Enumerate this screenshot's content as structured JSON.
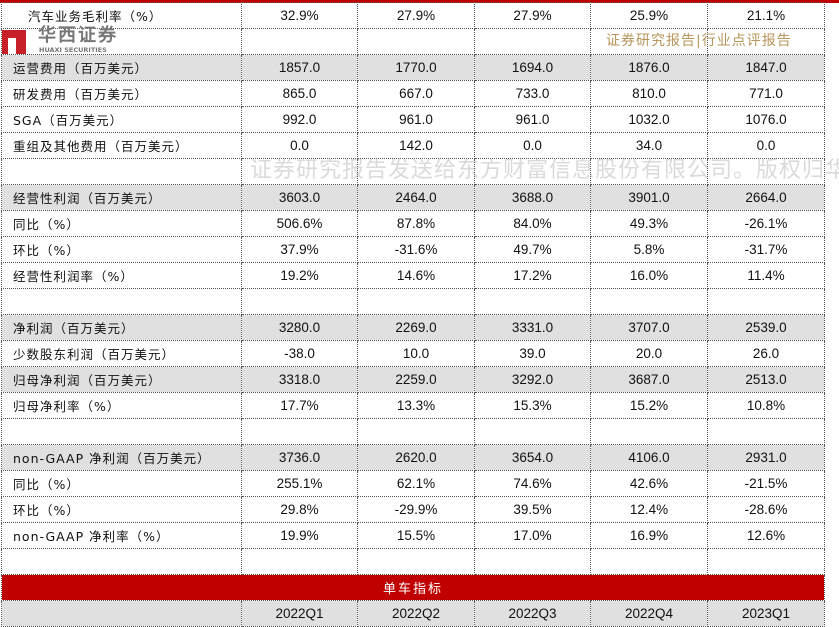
{
  "watermark": "证券研究报告发送给东方财富信息股份有限公司。版权归华西证券所有，请勿转发",
  "logo": {
    "cn": "华西证券",
    "en": "HUAXI SECURITIES"
  },
  "report_tag": "证券研究报告|行业点评报告",
  "colors": {
    "accent": "#c00000",
    "shade": "#e0e0e0",
    "tag": "#b8955a"
  },
  "rows": [
    {
      "label": "  汽车业务毛利率（%）",
      "values": [
        "32.9%",
        "27.9%",
        "27.9%",
        "25.9%",
        "21.1%"
      ],
      "shade": false
    },
    {
      "label": "",
      "values": [
        "",
        "",
        "",
        "",
        ""
      ],
      "shade": false
    },
    {
      "label": "运营费用（百万美元）",
      "values": [
        "1857.0",
        "1770.0",
        "1694.0",
        "1876.0",
        "1847.0"
      ],
      "shade": true
    },
    {
      "label": "研发费用（百万美元）",
      "values": [
        "865.0",
        "667.0",
        "733.0",
        "810.0",
        "771.0"
      ],
      "shade": false
    },
    {
      "label": "SGA（百万美元）",
      "values": [
        "992.0",
        "961.0",
        "961.0",
        "1032.0",
        "1076.0"
      ],
      "shade": false
    },
    {
      "label": "重组及其他费用（百万美元）",
      "values": [
        "0.0",
        "142.0",
        "0.0",
        "34.0",
        "0.0"
      ],
      "shade": false
    },
    {
      "label": "",
      "values": [
        "",
        "",
        "",
        "",
        ""
      ],
      "shade": false
    },
    {
      "label": "经营性利润（百万美元）",
      "values": [
        "3603.0",
        "2464.0",
        "3688.0",
        "3901.0",
        "2664.0"
      ],
      "shade": true
    },
    {
      "label": "同比（%）",
      "values": [
        "506.6%",
        "87.8%",
        "84.0%",
        "49.3%",
        "-26.1%"
      ],
      "shade": false
    },
    {
      "label": "环比（%）",
      "values": [
        "37.9%",
        "-31.6%",
        "49.7%",
        "5.8%",
        "-31.7%"
      ],
      "shade": false
    },
    {
      "label": "经营性利润率（%）",
      "values": [
        "19.2%",
        "14.6%",
        "17.2%",
        "16.0%",
        "11.4%"
      ],
      "shade": false
    },
    {
      "label": "",
      "values": [
        "",
        "",
        "",
        "",
        ""
      ],
      "shade": false
    },
    {
      "label": "净利润（百万美元）",
      "values": [
        "3280.0",
        "2269.0",
        "3331.0",
        "3707.0",
        "2539.0"
      ],
      "shade": true
    },
    {
      "label": "少数股东利润（百万美元）",
      "values": [
        "-38.0",
        "10.0",
        "39.0",
        "20.0",
        "26.0"
      ],
      "shade": false
    },
    {
      "label": "归母净利润（百万美元）",
      "values": [
        "3318.0",
        "2259.0",
        "3292.0",
        "3687.0",
        "2513.0"
      ],
      "shade": true
    },
    {
      "label": "归母净利率（%）",
      "values": [
        "17.7%",
        "13.3%",
        "15.3%",
        "15.2%",
        "10.8%"
      ],
      "shade": false
    },
    {
      "label": "",
      "values": [
        "",
        "",
        "",
        "",
        ""
      ],
      "shade": false
    },
    {
      "label": "non-GAAP 净利润（百万美元）",
      "values": [
        "3736.0",
        "2620.0",
        "3654.0",
        "4106.0",
        "2931.0"
      ],
      "shade": true
    },
    {
      "label": "同比（%）",
      "values": [
        "255.1%",
        "62.1%",
        "74.6%",
        "42.6%",
        "-21.5%"
      ],
      "shade": false
    },
    {
      "label": "环比（%）",
      "values": [
        "29.8%",
        "-29.9%",
        "39.5%",
        "12.4%",
        "-28.6%"
      ],
      "shade": false
    },
    {
      "label": "non-GAAP 净利率（%）",
      "values": [
        "19.9%",
        "15.5%",
        "17.0%",
        "16.9%",
        "12.6%"
      ],
      "shade": false
    },
    {
      "label": "",
      "values": [
        "",
        "",
        "",
        "",
        ""
      ],
      "shade": false
    }
  ],
  "section_title": "单车指标",
  "quarters": [
    "2022Q1",
    "2022Q2",
    "2022Q3",
    "2022Q4",
    "2023Q1"
  ]
}
